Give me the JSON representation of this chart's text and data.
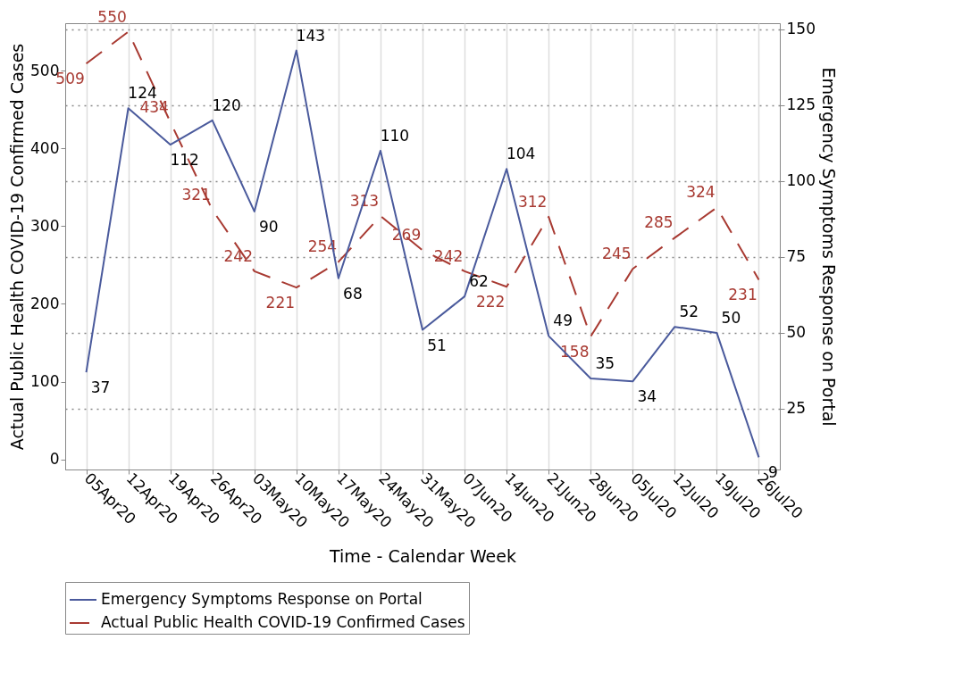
{
  "chart_data": {
    "type": "line",
    "xlabel": "Time - Calendar Week",
    "ylabel": "Actual Public Health COVID-19 Confirmed Cases",
    "y2label": "Emergency Symptoms Response on Portal",
    "categories": [
      "05Apr20",
      "12Apr20",
      "19Apr20",
      "26Apr20",
      "03May20",
      "10May20",
      "17May20",
      "24May20",
      "31May20",
      "07Jun20",
      "14Jun20",
      "21Jun20",
      "28Jun20",
      "05Jul20",
      "12Jul20",
      "19Jul20",
      "26Jul20"
    ],
    "series": [
      {
        "name": "Emergency Symptoms Response on Portal",
        "color": "#4a5a9c",
        "axis": "y2",
        "line_style": "solid",
        "values": [
          37,
          124,
          112,
          120,
          90,
          143,
          68,
          110,
          51,
          62,
          104,
          49,
          35,
          34,
          52,
          50,
          9
        ]
      },
      {
        "name": "Actual Public Health COVID-19 Confirmed Cases",
        "color": "#a83a32",
        "line_style": "dashed",
        "values": [
          509,
          550,
          434,
          321,
          242,
          221,
          254,
          313,
          269,
          242,
          222,
          312,
          158,
          245,
          285,
          324,
          231
        ]
      }
    ],
    "ylim": [
      -13,
      561
    ],
    "yticks": [
      0,
      100,
      200,
      300,
      400,
      500
    ],
    "y2lim": [
      5,
      152
    ],
    "y2ticks": [
      25,
      50,
      75,
      100,
      125,
      150
    ],
    "grid": true,
    "legend": "bottom",
    "data_labels": true
  }
}
